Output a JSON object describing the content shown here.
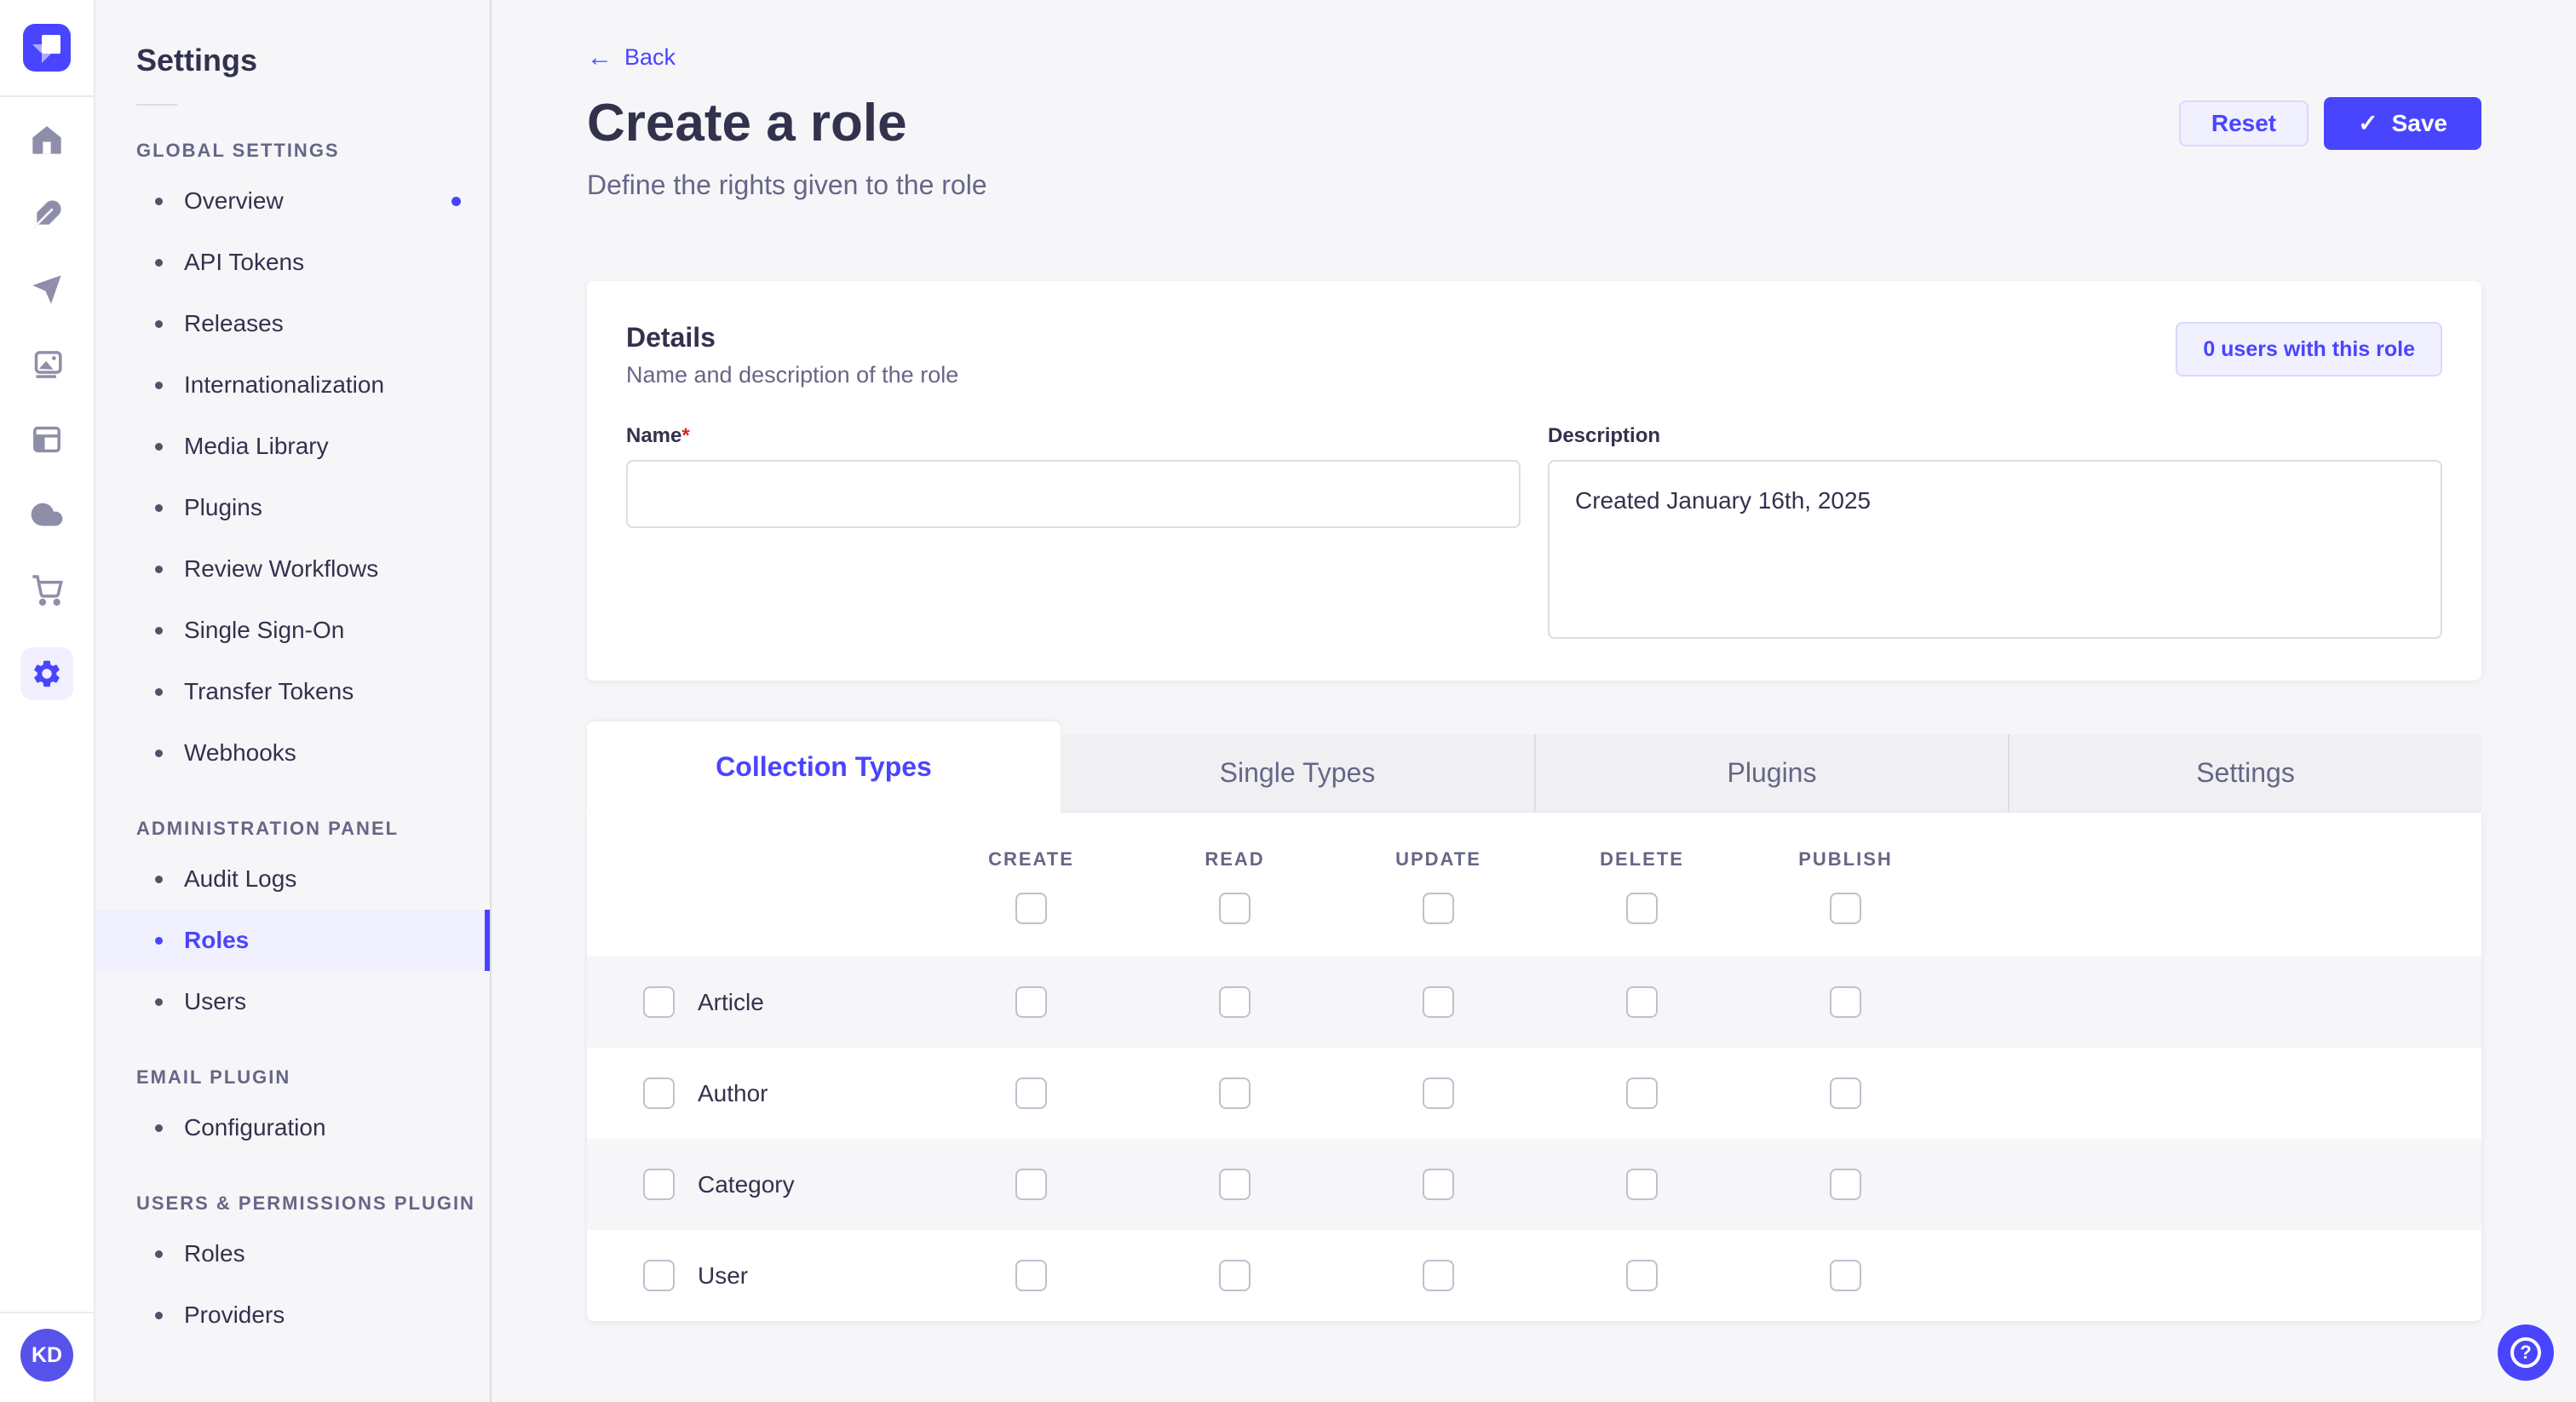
{
  "colors": {
    "accent": "#4945FF",
    "accent_bg": "#F0F0FF",
    "accent_border": "#D9D8FF",
    "danger": "#D02B20",
    "page_bg": "#F6F6F9"
  },
  "rail": {
    "logo": "strapi-logo",
    "icons": [
      "home",
      "feather",
      "send",
      "images",
      "layout",
      "cloud",
      "cart",
      "settings"
    ],
    "active_icon": "settings",
    "avatar_initials": "KD"
  },
  "sidebar": {
    "title": "Settings",
    "sections": [
      {
        "header": "GLOBAL SETTINGS",
        "items": [
          {
            "label": "Overview",
            "notification": true
          },
          {
            "label": "API Tokens"
          },
          {
            "label": "Releases"
          },
          {
            "label": "Internationalization"
          },
          {
            "label": "Media Library"
          },
          {
            "label": "Plugins"
          },
          {
            "label": "Review Workflows"
          },
          {
            "label": "Single Sign-On"
          },
          {
            "label": "Transfer Tokens"
          },
          {
            "label": "Webhooks"
          }
        ]
      },
      {
        "header": "ADMINISTRATION PANEL",
        "items": [
          {
            "label": "Audit Logs"
          },
          {
            "label": "Roles",
            "active": true
          },
          {
            "label": "Users"
          }
        ]
      },
      {
        "header": "EMAIL PLUGIN",
        "items": [
          {
            "label": "Configuration"
          }
        ]
      },
      {
        "header": "USERS & PERMISSIONS PLUGIN",
        "items": [
          {
            "label": "Roles"
          },
          {
            "label": "Providers"
          }
        ]
      }
    ]
  },
  "header": {
    "back_label": "Back",
    "title": "Create a role",
    "subtitle": "Define the rights given to the role",
    "reset_label": "Reset",
    "save_label": "Save",
    "save_check": "✓"
  },
  "details": {
    "title": "Details",
    "subtitle": "Name and description of the role",
    "users_chip": "0 users with this role",
    "name_label": "Name",
    "required": "*",
    "name_value": "",
    "description_label": "Description",
    "description_value": "Created January 16th, 2025"
  },
  "permissions": {
    "tabs": [
      {
        "label": "Collection Types",
        "active": true
      },
      {
        "label": "Single Types"
      },
      {
        "label": "Plugins"
      },
      {
        "label": "Settings"
      }
    ],
    "columns": [
      "CREATE",
      "READ",
      "UPDATE",
      "DELETE",
      "PUBLISH"
    ],
    "select_all_checked": [
      false,
      false,
      false,
      false,
      false
    ],
    "rows": [
      {
        "label": "Article",
        "checked": false,
        "permissions": [
          false,
          false,
          false,
          false,
          false
        ]
      },
      {
        "label": "Author",
        "checked": false,
        "permissions": [
          false,
          false,
          false,
          false,
          false
        ]
      },
      {
        "label": "Category",
        "checked": false,
        "permissions": [
          false,
          false,
          false,
          false,
          false
        ]
      },
      {
        "label": "User",
        "checked": false,
        "permissions": [
          false,
          false,
          false,
          false,
          false
        ]
      }
    ]
  },
  "help": {
    "icon": "question-mark"
  }
}
